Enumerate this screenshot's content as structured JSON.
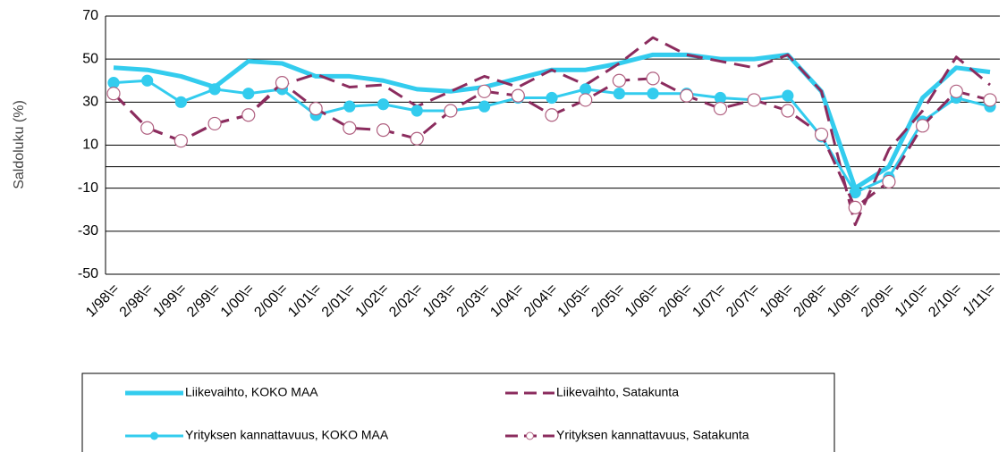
{
  "chart_data": {
    "type": "line",
    "y_label": "Saldoluku (%)",
    "categories": [
      "1/98\\=",
      "2/98\\=",
      "1/99\\=",
      "2/99\\=",
      "1/00\\=",
      "2/00\\=",
      "1/01\\=",
      "2/01\\=",
      "1/02\\=",
      "2/02\\=",
      "1/03\\=",
      "2/03\\=",
      "1/04\\=",
      "2/04\\=",
      "1/05\\=",
      "2/05\\=",
      "1/06\\=",
      "2/06\\=",
      "1/07\\=",
      "2/07\\=",
      "1/08\\=",
      "2/08\\=",
      "1/09\\=",
      "2/09\\=",
      "1/10\\=",
      "2/10\\=",
      "1/11\\="
    ],
    "series": [
      {
        "name": "Liikevaihto, KOKO MAA",
        "color": "#33ccee",
        "style": "solid",
        "width": 5,
        "marker": "none",
        "values": [
          46,
          45,
          42,
          37,
          49,
          48,
          42,
          42,
          40,
          36,
          35,
          37,
          41,
          45,
          45,
          48,
          52,
          52,
          50,
          50,
          52,
          35,
          -10,
          0,
          32,
          46,
          44
        ]
      },
      {
        "name": "Liikevaihto, Satakunta",
        "color": "#8b2c5e",
        "style": "dashed",
        "width": 3,
        "marker": "none",
        "values": [
          34,
          18,
          12,
          20,
          24,
          38,
          43,
          37,
          38,
          28,
          35,
          42,
          37,
          45,
          38,
          48,
          60,
          52,
          49,
          46,
          52,
          35,
          -27,
          8,
          26,
          51,
          38
        ]
      },
      {
        "name": "Yrityksen kannattavuus, KOKO MAA",
        "color": "#33ccee",
        "style": "solid",
        "width": 3,
        "marker": "circle-filled",
        "values": [
          39,
          40,
          30,
          36,
          34,
          36,
          24,
          28,
          29,
          26,
          26,
          28,
          32,
          32,
          36,
          34,
          34,
          34,
          32,
          31,
          33,
          14,
          -12,
          -5,
          21,
          32,
          28
        ]
      },
      {
        "name": "Yrityksen kannattavuus, Satakunta",
        "color": "#8b2c5e",
        "style": "dashed",
        "width": 3,
        "marker": "circle-open",
        "values": [
          34,
          18,
          12,
          20,
          24,
          39,
          27,
          18,
          17,
          13,
          26,
          35,
          33,
          24,
          31,
          40,
          41,
          33,
          27,
          31,
          26,
          15,
          -19,
          -7,
          19,
          35,
          31
        ]
      }
    ],
    "ylim": [
      -50,
      70
    ],
    "yticks": [
      -50,
      -30,
      -10,
      10,
      30,
      50,
      70
    ],
    "grid": true
  }
}
